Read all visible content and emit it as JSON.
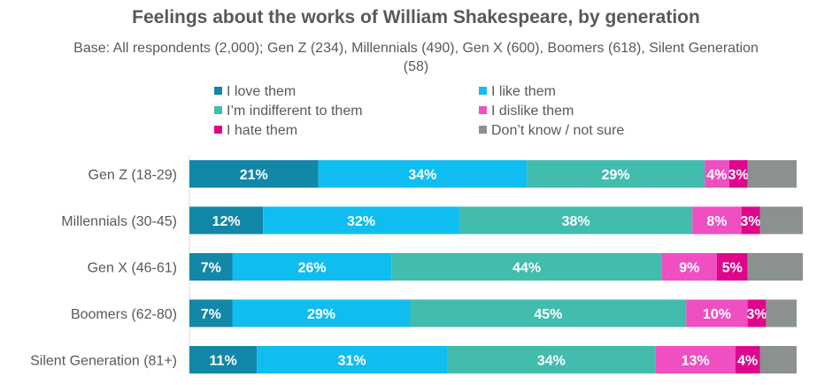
{
  "chart_data": {
    "type": "bar",
    "orientation": "horizontal",
    "stacked": true,
    "title": "Feelings about the works of William Shakespeare, by generation",
    "subtitle": "Base: All respondents (2,000); Gen Z (234), Millennials (490), Gen X (600), Boomers (618), Silent Generation (58)",
    "categories": [
      "Gen Z (18-29)",
      "Millennials (30-45)",
      "Gen X (46-61)",
      "Boomers (62-80)",
      "Silent Generation (81+)"
    ],
    "series": [
      {
        "name": "I love them",
        "color": "#1287a8",
        "values": [
          21,
          12,
          7,
          7,
          11
        ],
        "labels": [
          "21%",
          "12%",
          "7%",
          "7%",
          "11%"
        ]
      },
      {
        "name": "I like them",
        "color": "#10bdf0",
        "values": [
          34,
          32,
          26,
          29,
          31
        ],
        "labels": [
          "34%",
          "32%",
          "26%",
          "29%",
          "31%"
        ]
      },
      {
        "name": "I’m indifferent to them",
        "color": "#41bcad",
        "values": [
          29,
          38,
          44,
          45,
          34
        ],
        "labels": [
          "29%",
          "38%",
          "44%",
          "45%",
          "34%"
        ]
      },
      {
        "name": "I dislike them",
        "color": "#f04fc2",
        "values": [
          4,
          8,
          9,
          10,
          13
        ],
        "labels": [
          "4%",
          "8%",
          "9%",
          "10%",
          "13%"
        ]
      },
      {
        "name": "I hate them",
        "color": "#e0068c",
        "values": [
          3,
          3,
          5,
          3,
          4
        ],
        "labels": [
          "3%",
          "3%",
          "5%",
          "3%",
          "4%"
        ]
      },
      {
        "name": "Don’t know / not sure",
        "color": "#8b9191",
        "values": [
          8,
          7,
          9,
          5,
          6
        ],
        "labels": [
          "",
          "",
          "",
          "",
          ""
        ]
      }
    ],
    "xlim": [
      0,
      100
    ],
    "legend_position": "top"
  }
}
